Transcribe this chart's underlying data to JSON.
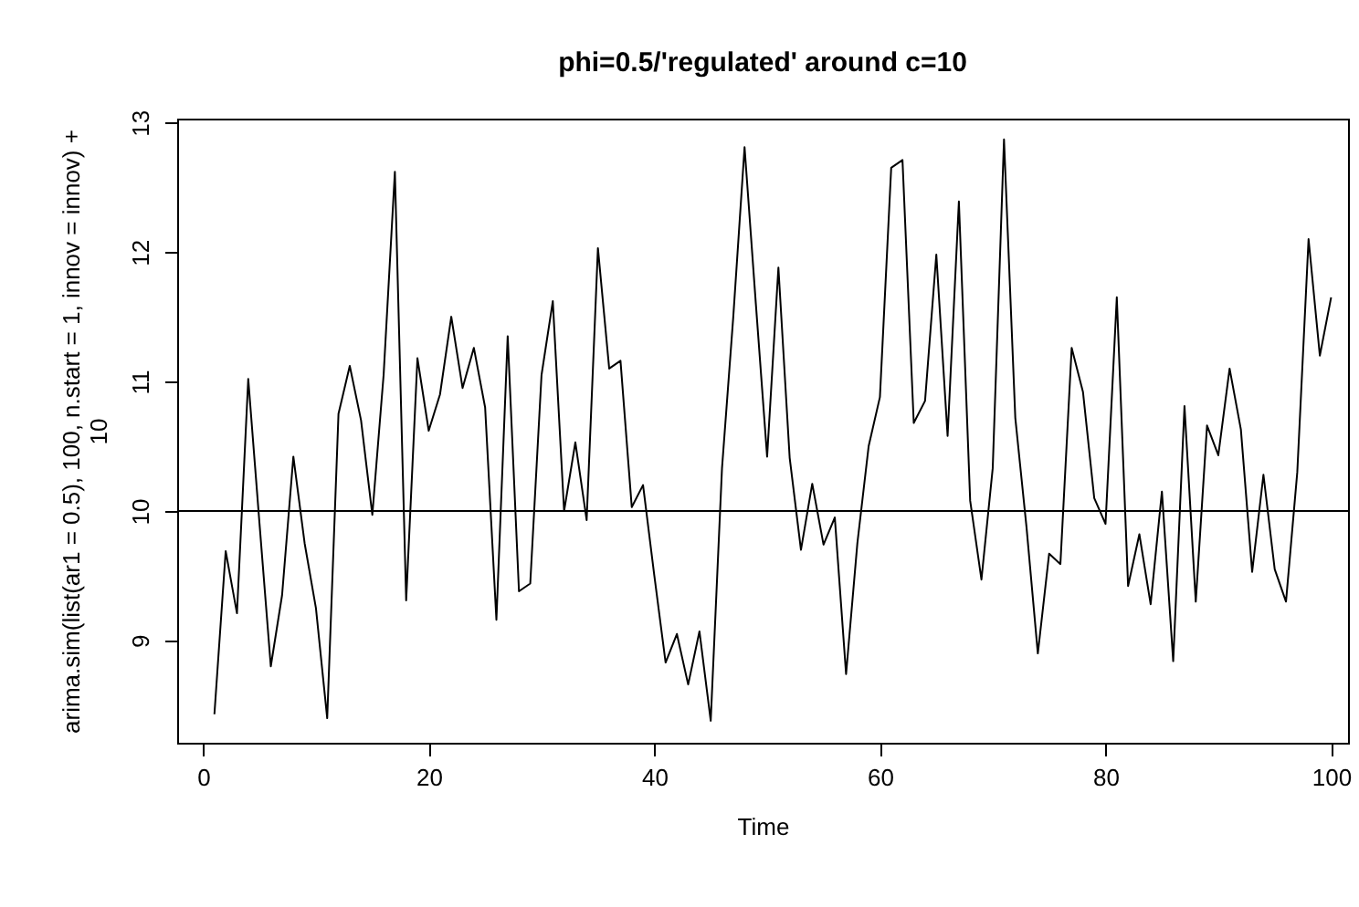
{
  "chart_data": {
    "type": "line",
    "title": "phi=0.5/'regulated' around c=10",
    "xlabel": "Time",
    "ylabel": "arima.sim(list(ar1 = 0.5), 100, n.start = 1, innov = innov) + 10",
    "x": [
      1,
      2,
      3,
      4,
      5,
      6,
      7,
      8,
      9,
      10,
      11,
      12,
      13,
      14,
      15,
      16,
      17,
      18,
      19,
      20,
      21,
      22,
      23,
      24,
      25,
      26,
      27,
      28,
      29,
      30,
      31,
      32,
      33,
      34,
      35,
      36,
      37,
      38,
      39,
      40,
      41,
      42,
      43,
      44,
      45,
      46,
      47,
      48,
      49,
      50,
      51,
      52,
      53,
      54,
      55,
      56,
      57,
      58,
      59,
      60,
      61,
      62,
      63,
      64,
      65,
      66,
      67,
      68,
      69,
      70,
      71,
      72,
      73,
      74,
      75,
      76,
      77,
      78,
      79,
      80,
      81,
      82,
      83,
      84,
      85,
      86,
      87,
      88,
      89,
      90,
      91,
      92,
      93,
      94,
      95,
      96,
      97,
      98,
      99,
      100
    ],
    "series": [
      {
        "color": "#000000",
        "values": [
          8.43,
          9.69,
          9.21,
          11.02,
          9.9,
          8.8,
          9.35,
          10.42,
          9.75,
          9.25,
          8.4,
          10.75,
          11.12,
          10.7,
          9.97,
          11.05,
          12.62,
          9.31,
          11.18,
          10.62,
          10.9,
          11.5,
          10.95,
          11.26,
          10.8,
          9.16,
          11.35,
          9.38,
          9.44,
          11.05,
          11.62,
          10.0,
          10.53,
          9.93,
          12.03,
          11.1,
          11.16,
          10.03,
          10.2,
          9.5,
          8.83,
          9.05,
          8.66,
          9.07,
          8.38,
          10.33,
          11.5,
          12.81,
          11.6,
          10.42,
          11.88,
          10.41,
          9.7,
          10.21,
          9.74,
          9.95,
          8.74,
          9.75,
          10.5,
          10.88,
          12.65,
          12.71,
          10.68,
          10.85,
          11.98,
          10.58,
          12.39,
          10.08,
          9.47,
          10.33,
          12.87,
          10.72,
          9.87,
          8.9,
          9.67,
          9.59,
          11.26,
          10.92,
          10.1,
          9.9,
          11.65,
          9.42,
          9.82,
          9.28,
          10.15,
          8.84,
          10.81,
          9.3,
          10.66,
          10.43,
          11.1,
          10.63,
          9.53,
          10.28,
          9.55,
          9.3,
          10.3,
          12.1,
          11.2,
          11.65
        ]
      }
    ],
    "xlim": [
      -2.3,
      101.5
    ],
    "xticks": [
      0,
      20,
      40,
      60,
      80,
      100
    ],
    "ylim": [
      8.21,
      13.03
    ],
    "yticks": [
      9,
      10,
      11,
      12,
      13
    ],
    "ref_lines": [
      {
        "axis": "y",
        "value": 10,
        "color": "#000000"
      }
    ],
    "grid": false,
    "marker": "none",
    "line_style": "solid"
  }
}
